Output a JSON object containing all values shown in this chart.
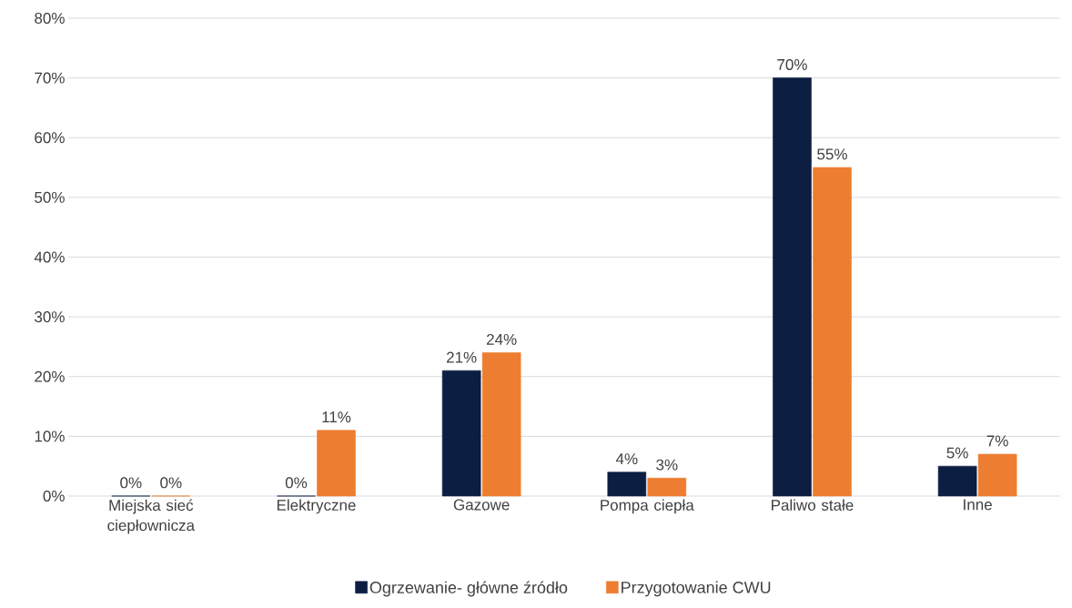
{
  "chart_data": {
    "type": "bar",
    "categories": [
      "Miejska sieć ciepłownicza",
      "Elektryczne",
      "Gazowe",
      "Pompa ciepła",
      "Paliwo stałe",
      "Inne"
    ],
    "series": [
      {
        "name": "Ogrzewanie- główne źródło",
        "color": "#0c1e41",
        "values": [
          0,
          0,
          21,
          4,
          70,
          5
        ],
        "value_labels": [
          "0%",
          "0%",
          "21%",
          "4%",
          "70%",
          "5%"
        ]
      },
      {
        "name": "Przygotowanie CWU",
        "color": "#ed7d31",
        "values": [
          0,
          11,
          24,
          3,
          55,
          7
        ],
        "value_labels": [
          "0%",
          "11%",
          "24%",
          "3%",
          "55%",
          "7%"
        ]
      }
    ],
    "ylim": [
      0,
      80
    ],
    "yticks": [
      {
        "value": 0,
        "label": "0%"
      },
      {
        "value": 10,
        "label": "10%"
      },
      {
        "value": 20,
        "label": "20%"
      },
      {
        "value": 30,
        "label": "30%"
      },
      {
        "value": 40,
        "label": "40%"
      },
      {
        "value": 50,
        "label": "50%"
      },
      {
        "value": 60,
        "label": "60%"
      },
      {
        "value": 70,
        "label": "70%"
      },
      {
        "value": 80,
        "label": "80%"
      }
    ],
    "grid": "y",
    "legend": "bottom"
  }
}
